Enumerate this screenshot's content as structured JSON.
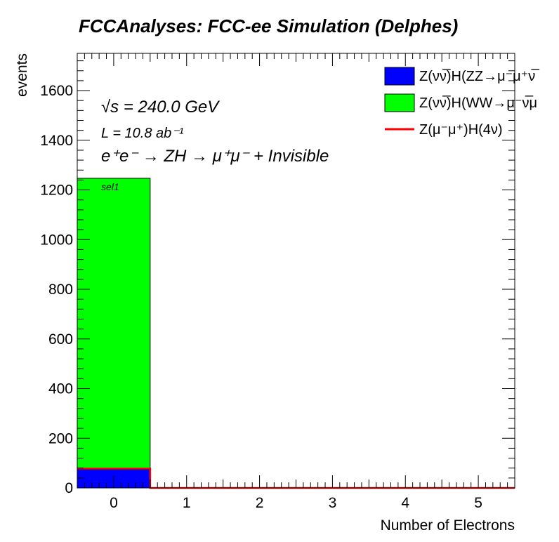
{
  "chart_data": {
    "type": "bar",
    "title": "FCCAnalyses: FCC-ee Simulation (Delphes)",
    "xlabel": "Number of Electrons",
    "ylabel": "events",
    "xlim": [
      -0.5,
      5.5
    ],
    "ylim": [
      0,
      1750
    ],
    "x_ticks": [
      "0",
      "1",
      "2",
      "3",
      "4",
      "5"
    ],
    "y_ticks": [
      "0",
      "200",
      "400",
      "600",
      "800",
      "1000",
      "1200",
      "1400",
      "1600"
    ],
    "stacked": true,
    "bins": [
      0,
      1,
      2,
      3,
      4,
      5
    ],
    "series": [
      {
        "name": "Z(νν̅)H(ZZ→μ⁻μ⁺νν̅)",
        "legend_text": "Z(νν̅)H(ZZ→μ⁻μ⁺ν̅",
        "style": "fill",
        "color": "#0000ff",
        "values": [
          75,
          0,
          0,
          0,
          0,
          0
        ]
      },
      {
        "name": "Z(νν̅)H(WW→μ⁻ν̅μ⁺ν)",
        "legend_text": "Z(νν̅)H(WW→μ⁻ν̅μ",
        "style": "fill",
        "color": "#00ff00",
        "values": [
          1172,
          0,
          0,
          0,
          0,
          0
        ]
      },
      {
        "name": "Z(μ⁻μ⁺)H(4ν)",
        "legend_text": "Z(μ⁻μ⁺)H(4ν)",
        "style": "line",
        "color": "#ff0000",
        "values": [
          78,
          0,
          0,
          0,
          0,
          0
        ]
      }
    ],
    "annotations": {
      "sqrt_s": "√s = 240.0 GeV",
      "lumi": "L = 10.8 ab⁻¹",
      "process": "e⁺e⁻ → ZH → μ⁺μ⁻ + Invisible",
      "selection": "sel1"
    },
    "legend_position": "top-right",
    "grid": false
  }
}
